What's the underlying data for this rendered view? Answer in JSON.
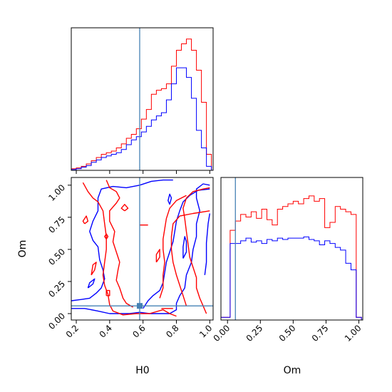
{
  "colors": {
    "red": "#ff0000",
    "blue": "#0000ff",
    "truth": "#4682b4"
  },
  "chart_data": [
    {
      "id": "h0-hist",
      "type": "line",
      "subtype": "step-histogram",
      "xlim": [
        0.17,
        1.02
      ],
      "x_ticks": [
        0.2,
        0.4,
        0.6,
        0.8,
        1.0
      ],
      "y_ticks_shown": false,
      "truth": {
        "x": 0.58
      },
      "bin_edges": [
        0.17,
        0.2,
        0.23,
        0.26,
        0.29,
        0.32,
        0.35,
        0.38,
        0.41,
        0.44,
        0.47,
        0.5,
        0.53,
        0.56,
        0.59,
        0.62,
        0.65,
        0.68,
        0.71,
        0.74,
        0.77,
        0.8,
        0.83,
        0.86,
        0.89,
        0.92,
        0.95,
        0.98,
        1.01
      ],
      "series": [
        {
          "color": "red",
          "values": [
            2,
            3,
            5,
            8,
            12,
            16,
            20,
            22,
            24,
            28,
            33,
            40,
            45,
            52,
            64,
            76,
            95,
            100,
            102,
            108,
            130,
            150,
            158,
            164,
            150,
            125,
            85,
            20
          ]
        },
        {
          "color": "blue",
          "values": [
            1,
            2,
            4,
            6,
            10,
            13,
            16,
            18,
            20,
            22,
            26,
            32,
            38,
            42,
            48,
            55,
            63,
            68,
            72,
            88,
            108,
            128,
            128,
            116,
            90,
            50,
            28,
            5
          ]
        }
      ],
      "ylim": [
        0,
        178
      ]
    },
    {
      "id": "om-hist",
      "type": "line",
      "subtype": "step-histogram",
      "xlim": [
        -0.05,
        1.03
      ],
      "x_ticks": [
        0.0,
        0.25,
        0.5,
        0.75,
        1.0
      ],
      "x_tick_labels": [
        "0.00",
        "0.25",
        "0.50",
        "0.75",
        "1.00"
      ],
      "xlabel": "Om",
      "y_ticks_shown": false,
      "truth": {
        "x": 0.06
      },
      "bin_edges": [
        -0.05,
        0.02,
        0.06,
        0.1,
        0.14,
        0.18,
        0.22,
        0.26,
        0.3,
        0.34,
        0.38,
        0.42,
        0.46,
        0.5,
        0.54,
        0.58,
        0.62,
        0.66,
        0.7,
        0.74,
        0.78,
        0.82,
        0.86,
        0.9,
        0.94,
        0.98,
        1.02
      ],
      "series": [
        {
          "color": "red",
          "values": [
            2,
            68,
            75,
            80,
            78,
            82,
            77,
            84,
            76,
            72,
            84,
            86,
            88,
            90,
            88,
            92,
            94,
            90,
            92,
            70,
            74,
            86,
            84,
            82,
            80,
            2
          ]
        },
        {
          "color": "blue",
          "values": [
            2,
            58,
            58,
            60,
            62,
            59,
            60,
            58,
            61,
            60,
            62,
            61,
            62,
            62,
            62,
            63,
            61,
            60,
            57,
            60,
            58,
            55,
            53,
            43,
            38,
            2
          ]
        }
      ],
      "ylim": [
        0,
        108
      ]
    },
    {
      "id": "h0-om-2d",
      "type": "line",
      "subtype": "2d-contour",
      "xlim": [
        0.17,
        1.02
      ],
      "ylim": [
        -0.05,
        1.06
      ],
      "x_ticks": [
        0.2,
        0.4,
        0.6,
        0.8,
        1.0
      ],
      "y_ticks": [
        0.0,
        0.25,
        0.5,
        0.75,
        1.0
      ],
      "y_tick_labels": [
        "0.00",
        "0.25",
        "0.50",
        "0.75",
        "1.00"
      ],
      "xlabel": "H0",
      "ylabel": "Om",
      "truth": {
        "x": 0.58,
        "y": 0.06
      },
      "contours": [
        {
          "color": "blue",
          "points": [
            [
              0.17,
              0.1
            ],
            [
              0.23,
              0.11
            ],
            [
              0.28,
              0.12
            ],
            [
              0.32,
              0.16
            ],
            [
              0.35,
              0.2
            ],
            [
              0.37,
              0.27
            ],
            [
              0.36,
              0.34
            ],
            [
              0.34,
              0.42
            ],
            [
              0.33,
              0.52
            ],
            [
              0.3,
              0.57
            ],
            [
              0.28,
              0.64
            ],
            [
              0.3,
              0.72
            ],
            [
              0.33,
              0.8
            ],
            [
              0.33,
              0.9
            ],
            [
              0.35,
              0.97
            ],
            [
              0.42,
              0.99
            ],
            [
              0.5,
              0.98
            ],
            [
              0.58,
              1.0
            ],
            [
              0.65,
              1.03
            ],
            [
              0.72,
              1.04
            ],
            [
              0.78,
              1.04
            ]
          ]
        },
        {
          "color": "blue",
          "points": [
            [
              0.17,
              0.04
            ],
            [
              0.25,
              0.04
            ],
            [
              0.33,
              0.02
            ],
            [
              0.4,
              0.0
            ],
            [
              0.46,
              0.0
            ],
            [
              0.52,
              0.0
            ],
            [
              0.58,
              0.01
            ],
            [
              0.64,
              0.0
            ],
            [
              0.7,
              0.0
            ],
            [
              0.76,
              0.0
            ],
            [
              0.8,
              0.03
            ],
            [
              0.8,
              0.08
            ],
            [
              0.82,
              0.14
            ],
            [
              0.85,
              0.2
            ],
            [
              0.86,
              0.3
            ],
            [
              0.89,
              0.4
            ],
            [
              0.9,
              0.5
            ],
            [
              0.92,
              0.6
            ],
            [
              0.92,
              0.7
            ],
            [
              0.94,
              0.8
            ],
            [
              0.92,
              0.9
            ],
            [
              0.92,
              0.97
            ],
            [
              0.96,
              1.01
            ],
            [
              1.0,
              1.0
            ]
          ]
        },
        {
          "color": "blue",
          "points": [
            [
              0.6,
              0.04
            ],
            [
              0.63,
              0.1
            ],
            [
              0.66,
              0.14
            ],
            [
              0.7,
              0.18
            ],
            [
              0.72,
              0.24
            ],
            [
              0.73,
              0.32
            ],
            [
              0.74,
              0.4
            ],
            [
              0.76,
              0.48
            ],
            [
              0.78,
              0.56
            ],
            [
              0.79,
              0.64
            ],
            [
              0.8,
              0.72
            ],
            [
              0.82,
              0.8
            ],
            [
              0.84,
              0.87
            ],
            [
              0.88,
              0.92
            ],
            [
              0.93,
              0.96
            ],
            [
              1.0,
              0.97
            ]
          ]
        },
        {
          "color": "blue",
          "points": [
            [
              0.97,
              0.3
            ],
            [
              0.98,
              0.4
            ],
            [
              0.98,
              0.55
            ],
            [
              0.99,
              0.7
            ],
            [
              1.0,
              0.78
            ]
          ]
        },
        {
          "color": "blue",
          "points": [
            [
              0.84,
              0.43
            ],
            [
              0.86,
              0.48
            ],
            [
              0.86,
              0.56
            ],
            [
              0.85,
              0.6
            ],
            [
              0.84,
              0.52
            ],
            [
              0.84,
              0.43
            ]
          ]
        },
        {
          "color": "blue",
          "points": [
            [
              0.76,
              0.85
            ],
            [
              0.77,
              0.9
            ],
            [
              0.76,
              0.93
            ],
            [
              0.75,
              0.88
            ],
            [
              0.76,
              0.85
            ]
          ]
        },
        {
          "color": "blue",
          "points": [
            [
              0.27,
              0.2
            ],
            [
              0.3,
              0.23
            ],
            [
              0.31,
              0.27
            ],
            [
              0.28,
              0.24
            ],
            [
              0.27,
              0.2
            ]
          ]
        },
        {
          "color": "red",
          "points": [
            [
              0.24,
              1.02
            ],
            [
              0.27,
              0.95
            ],
            [
              0.3,
              0.9
            ],
            [
              0.33,
              0.87
            ],
            [
              0.36,
              0.8
            ],
            [
              0.37,
              0.7
            ],
            [
              0.38,
              0.6
            ],
            [
              0.38,
              0.5
            ],
            [
              0.37,
              0.4
            ],
            [
              0.36,
              0.3
            ],
            [
              0.37,
              0.22
            ],
            [
              0.39,
              0.15
            ],
            [
              0.4,
              0.07
            ],
            [
              0.42,
              0.02
            ],
            [
              0.48,
              -0.01
            ],
            [
              0.56,
              0.0
            ],
            [
              0.64,
              0.0
            ],
            [
              0.72,
              0.03
            ],
            [
              0.76,
              0.0
            ],
            [
              0.8,
              -0.02
            ]
          ]
        },
        {
          "color": "red",
          "points": [
            [
              0.38,
              1.04
            ],
            [
              0.4,
              0.98
            ],
            [
              0.44,
              0.95
            ],
            [
              0.46,
              0.9
            ],
            [
              0.44,
              0.86
            ],
            [
              0.4,
              0.8
            ],
            [
              0.4,
              0.72
            ],
            [
              0.43,
              0.64
            ],
            [
              0.42,
              0.56
            ],
            [
              0.44,
              0.48
            ],
            [
              0.46,
              0.4
            ],
            [
              0.45,
              0.34
            ],
            [
              0.44,
              0.26
            ],
            [
              0.46,
              0.2
            ],
            [
              0.48,
              0.12
            ],
            [
              0.5,
              0.08
            ],
            [
              0.54,
              0.05
            ]
          ]
        },
        {
          "color": "red",
          "points": [
            [
              0.98,
              0.0
            ],
            [
              0.96,
              0.06
            ],
            [
              0.94,
              0.12
            ],
            [
              0.92,
              0.2
            ],
            [
              0.92,
              0.28
            ],
            [
              0.9,
              0.36
            ],
            [
              0.88,
              0.44
            ],
            [
              0.87,
              0.54
            ],
            [
              0.86,
              0.64
            ],
            [
              0.85,
              0.74
            ],
            [
              0.84,
              0.82
            ],
            [
              0.86,
              0.9
            ],
            [
              0.9,
              0.95
            ],
            [
              0.96,
              0.97
            ],
            [
              1.0,
              0.98
            ]
          ]
        },
        {
          "color": "red",
          "points": [
            [
              0.86,
              0.06
            ],
            [
              0.84,
              0.14
            ],
            [
              0.82,
              0.22
            ],
            [
              0.8,
              0.3
            ],
            [
              0.78,
              0.4
            ],
            [
              0.77,
              0.5
            ],
            [
              0.77,
              0.6
            ],
            [
              0.78,
              0.7
            ],
            [
              0.82,
              0.76
            ],
            [
              0.9,
              0.78
            ],
            [
              1.0,
              0.8
            ]
          ]
        },
        {
          "color": "red",
          "points": [
            [
              0.7,
              0.12
            ],
            [
              0.72,
              0.2
            ],
            [
              0.72,
              0.3
            ],
            [
              0.73,
              0.4
            ],
            [
              0.72,
              0.5
            ],
            [
              0.72,
              0.58
            ],
            [
              0.73,
              0.66
            ],
            [
              0.74,
              0.74
            ],
            [
              0.76,
              0.82
            ],
            [
              0.8,
              0.88
            ],
            [
              0.86,
              0.92
            ]
          ]
        },
        {
          "color": "red",
          "points": [
            [
              0.68,
              0.4
            ],
            [
              0.7,
              0.44
            ],
            [
              0.7,
              0.5
            ],
            [
              0.68,
              0.46
            ],
            [
              0.68,
              0.4
            ]
          ]
        },
        {
          "color": "red",
          "points": [
            [
              0.58,
              0.69
            ],
            [
              0.63,
              0.69
            ]
          ]
        },
        {
          "color": "red",
          "points": [
            [
              0.71,
              0.04
            ],
            [
              0.78,
              0.04
            ]
          ]
        },
        {
          "color": "red",
          "points": [
            [
              0.38,
              0.14
            ],
            [
              0.4,
              0.14
            ],
            [
              0.4,
              0.18
            ],
            [
              0.38,
              0.18
            ],
            [
              0.38,
              0.14
            ]
          ]
        },
        {
          "color": "red",
          "points": [
            [
              0.25,
              0.7
            ],
            [
              0.27,
              0.72
            ],
            [
              0.26,
              0.76
            ],
            [
              0.24,
              0.72
            ],
            [
              0.25,
              0.7
            ]
          ]
        },
        {
          "color": "red",
          "points": [
            [
              0.49,
              0.8
            ],
            [
              0.51,
              0.82
            ],
            [
              0.49,
              0.85
            ],
            [
              0.47,
              0.82
            ],
            [
              0.49,
              0.8
            ]
          ]
        },
        {
          "color": "red",
          "points": [
            [
              0.38,
              0.58
            ],
            [
              0.39,
              0.6
            ],
            [
              0.38,
              0.62
            ],
            [
              0.37,
              0.6
            ],
            [
              0.38,
              0.58
            ]
          ]
        },
        {
          "color": "red",
          "points": [
            [
              0.29,
              0.3
            ],
            [
              0.31,
              0.34
            ],
            [
              0.32,
              0.4
            ],
            [
              0.3,
              0.38
            ],
            [
              0.29,
              0.3
            ]
          ]
        }
      ]
    }
  ]
}
